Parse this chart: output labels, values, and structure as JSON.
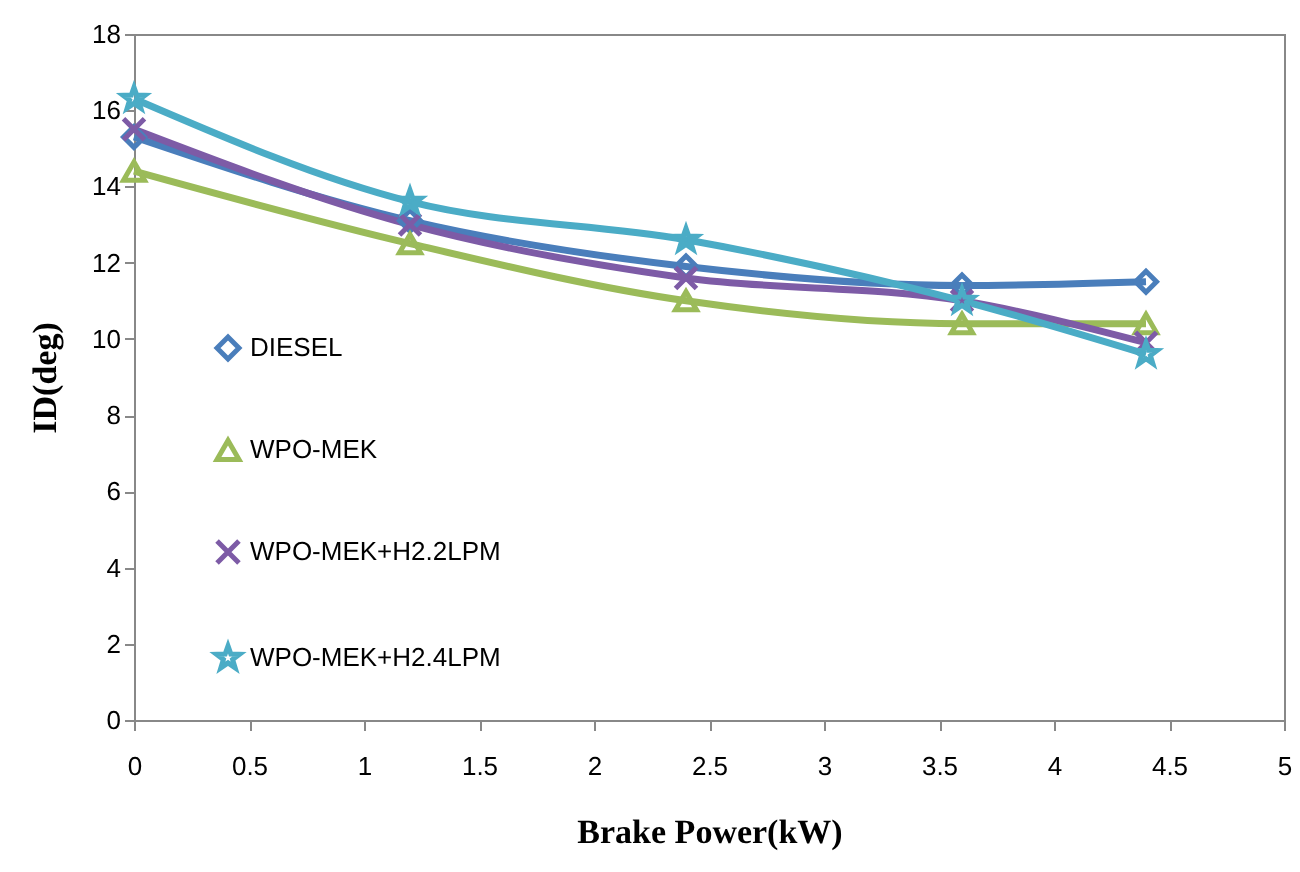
{
  "chart_data": {
    "type": "line",
    "xlabel": "Brake Power(kW)",
    "ylabel": "ID(deg)",
    "x": [
      0,
      1.2,
      2.4,
      3.6,
      4.4
    ],
    "series": [
      {
        "name": "DIESEL",
        "color": "#4a7ebb",
        "marker": "diamond",
        "values": [
          15.3,
          13.1,
          11.9,
          11.4,
          11.5
        ]
      },
      {
        "name": "WPO-MEK",
        "color": "#9bbb59",
        "marker": "triangle",
        "values": [
          14.4,
          12.5,
          11.0,
          10.4,
          10.4
        ]
      },
      {
        "name": "WPO-MEK+H2.2LPM",
        "color": "#7d5ba6",
        "marker": "cross",
        "values": [
          15.5,
          13.0,
          11.6,
          11.0,
          9.9
        ]
      },
      {
        "name": "WPO-MEK+H2.4LPM",
        "color": "#4bacc6",
        "marker": "star",
        "values": [
          16.3,
          13.6,
          12.6,
          11.0,
          9.6
        ]
      }
    ],
    "xlim": [
      0,
      5
    ],
    "xticks": [
      0,
      0.5,
      1,
      1.5,
      2,
      2.5,
      3,
      3.5,
      4,
      4.5,
      5
    ],
    "ylim": [
      0,
      18
    ],
    "yticks": [
      0,
      2,
      4,
      6,
      8,
      10,
      12,
      14,
      16,
      18
    ],
    "grid": false,
    "legend": "left",
    "line_style": "solid"
  }
}
